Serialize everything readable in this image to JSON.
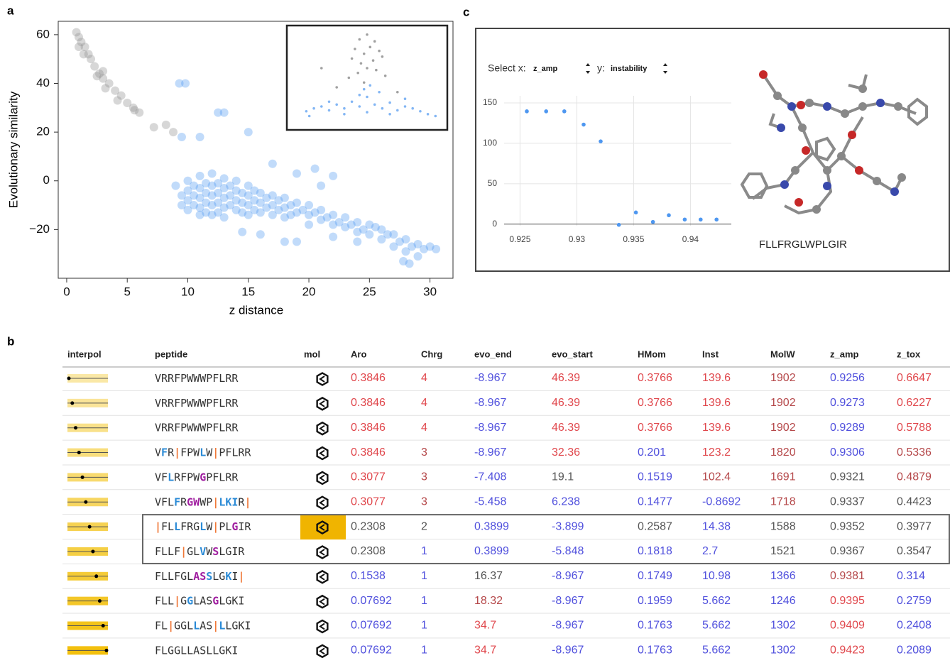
{
  "panel_labels": [
    "a",
    "b",
    "c"
  ],
  "chart_data": [
    {
      "type": "scatter",
      "xlabel": "z distance",
      "ylabel": "Evolutionary similarity",
      "xlim": [
        -0.7,
        31.9
      ],
      "ylim": [
        -40,
        65.5
      ],
      "xticks": [
        0,
        5,
        10,
        15,
        20,
        25,
        30
      ],
      "yticks": [
        60,
        40,
        20,
        0,
        {
          "value": -20,
          "label": "−20"
        }
      ],
      "frame": true,
      "series": [
        {
          "color": "#8c8c8c",
          "x": [
            0.8,
            1,
            1.2,
            1.5,
            1.8,
            2,
            2.3,
            2.7,
            3,
            3.5,
            4,
            4.5,
            5,
            5.5,
            6,
            1,
            1.4,
            2.5,
            3.2,
            4.2,
            5.6,
            7.2,
            8.2,
            8.8,
            3
          ],
          "y": [
            61,
            59,
            57,
            55,
            52,
            50,
            47,
            44,
            42,
            40,
            37,
            35,
            32,
            30,
            28,
            55,
            52,
            43,
            38,
            33,
            29,
            22,
            23,
            20,
            45
          ]
        },
        {
          "color": "#4e97f0",
          "x": [
            9.3,
            9.8,
            12.5,
            13,
            15,
            9.5,
            11,
            9,
            9.5,
            9.5,
            10,
            10,
            10,
            10,
            10.5,
            10.5,
            10.5,
            11,
            11,
            11,
            11,
            11,
            11.5,
            11.5,
            11.5,
            11.5,
            12,
            12,
            12,
            12,
            12,
            12.5,
            12.5,
            12.5,
            12.5,
            13,
            13,
            13,
            13,
            13,
            13.5,
            13.5,
            13.5,
            14,
            14,
            14,
            14,
            14.5,
            14.5,
            14.5,
            15,
            15,
            15,
            15,
            15.5,
            15.5,
            15.5,
            16,
            16,
            16,
            16.5,
            16.5,
            17,
            17,
            17,
            17.5,
            17.5,
            18,
            18,
            18,
            18.5,
            18.5,
            19,
            19,
            19.5,
            20,
            20,
            20,
            20.5,
            21,
            21,
            21.5,
            22,
            22,
            22.5,
            23,
            23,
            23.5,
            24,
            24,
            24.5,
            25,
            25,
            25.5,
            26,
            26,
            26.5,
            27,
            27,
            27.5,
            28,
            28,
            28.5,
            29,
            29,
            29.5,
            30,
            30.5,
            27.8,
            28.3,
            19,
            18,
            22,
            24,
            16,
            14.5,
            20.5,
            17,
            19,
            22,
            21
          ],
          "y": [
            40,
            40,
            28,
            28,
            20,
            18,
            18,
            -2,
            -6,
            -10,
            0,
            -4,
            -8,
            -12,
            -2,
            -6,
            -10,
            2,
            -3,
            -7,
            -11,
            -14,
            -1,
            -5,
            -9,
            -13,
            3,
            -2,
            -6,
            -10,
            -14,
            -1,
            -5,
            -9,
            -13,
            1,
            -3,
            -7,
            -11,
            -15,
            -2,
            -6,
            -10,
            0,
            -4,
            -8,
            -12,
            -5,
            -9,
            -13,
            -2,
            -6,
            -10,
            -14,
            -4,
            -8,
            -12,
            -5,
            -9,
            -13,
            -7,
            -11,
            -6,
            -10,
            -14,
            -8,
            -12,
            -7,
            -11,
            -15,
            -10,
            -14,
            -9,
            -13,
            -12,
            -10,
            -14,
            -18,
            -13,
            -12,
            -16,
            -15,
            -14,
            -18,
            -17,
            -15,
            -19,
            -18,
            -17,
            -21,
            -20,
            -18,
            -22,
            -19,
            -20,
            -24,
            -22,
            -22,
            -27,
            -25,
            -24,
            -29,
            -27,
            -26,
            -31,
            -28,
            -27,
            -28,
            -33,
            -34,
            -25,
            -25,
            -23,
            -25,
            -22,
            -21,
            5,
            7,
            3,
            2,
            -2
          ]
        }
      ],
      "inset": {
        "type": "scatter",
        "xlim": [
          0,
          100
        ],
        "ylim": [
          0,
          100
        ],
        "series": [
          {
            "color": "#777777",
            "x": [
              45,
              50,
              55,
              42,
              48,
              52,
              58,
              40,
              46,
              54,
              60,
              44,
              50,
              56,
              38,
              62,
              48,
              30,
              20,
              70
            ],
            "y": [
              90,
              95,
              88,
              80,
              75,
              82,
              78,
              70,
              65,
              68,
              72,
              55,
              60,
              58,
              50,
              52,
              45,
              40,
              60,
              35
            ]
          },
          {
            "color": "#4e97f0",
            "x": [
              10,
              15,
              20,
              25,
              30,
              35,
              40,
              45,
              50,
              55,
              60,
              65,
              70,
              75,
              80,
              85,
              90,
              35,
              50,
              65,
              48,
              52,
              45,
              58,
              75,
              25,
              95,
              12
            ],
            "y": [
              15,
              18,
              20,
              16,
              22,
              18,
              25,
              20,
              30,
              22,
              18,
              24,
              16,
              20,
              18,
              15,
              12,
              12,
              14,
              12,
              38,
              42,
              32,
              35,
              28,
              25,
              10,
              10
            ]
          }
        ]
      }
    },
    {
      "type": "scatter",
      "x_select_label": "Select x:",
      "x_field": "z_amp",
      "y_select_label": "y:",
      "y_field": "instability",
      "caption": "FLLFRGLWPLGIR",
      "grid": true,
      "xlim": [
        0.9236,
        0.9436
      ],
      "ylim": [
        -2,
        158.8
      ],
      "xticks": [
        0.925,
        0.93,
        0.935,
        0.94
      ],
      "yticks": [
        0,
        50,
        100,
        150
      ],
      "series": [
        {
          "color": "#4e97f0",
          "x": [
            0.9256,
            0.9273,
            0.9289,
            0.9306,
            0.9321,
            0.9337,
            0.9352,
            0.9367,
            0.9381,
            0.9395,
            0.9409,
            0.9423
          ],
          "y": [
            139.6,
            139.6,
            139.6,
            123.2,
            102.4,
            -0.8692,
            14.38,
            2.7,
            10.98,
            5.662,
            5.662,
            5.662
          ]
        }
      ]
    }
  ],
  "table": {
    "columns": [
      "interpol",
      "peptide",
      "mol",
      "Aro",
      "Chrg",
      "evo_end",
      "evo_start",
      "HMom",
      "Inst",
      "MolW",
      "z_amp",
      "z_tox"
    ],
    "slider_color": "#f2bd00",
    "selected_rows": [
      6,
      7
    ],
    "selected_mol": 6,
    "selected_color": "#f0b400",
    "rows": [
      {
        "interpol": 0,
        "peptide": [
          {
            "text": "VRRFPWWWPFLRR"
          }
        ],
        "values": [
          0.3846,
          4,
          -8.967,
          46.39,
          0.3766,
          139.6,
          1902,
          0.9256,
          0.6647
        ],
        "colors": [
          "#e0474c",
          "#e0474c",
          "#5050dd",
          "#e0474c",
          "#e0474c",
          "#e0474c",
          "#b5484a",
          "#5050dd",
          "#e0474c"
        ]
      },
      {
        "interpol": 0.09,
        "peptide": [
          {
            "text": "VRRFPWWWPFLRR"
          }
        ],
        "values": [
          0.3846,
          4,
          -8.967,
          46.39,
          0.3766,
          139.6,
          1902,
          0.9273,
          0.6227
        ],
        "colors": [
          "#e0474c",
          "#e0474c",
          "#5050dd",
          "#e0474c",
          "#e0474c",
          "#e0474c",
          "#b5484a",
          "#5050dd",
          "#e0474c"
        ]
      },
      {
        "interpol": 0.18,
        "peptide": [
          {
            "text": "VRRFPWWWPFLRR"
          }
        ],
        "values": [
          0.3846,
          4,
          -8.967,
          46.39,
          0.3766,
          139.6,
          1902,
          0.9289,
          0.5788
        ],
        "colors": [
          "#e0474c",
          "#e0474c",
          "#5050dd",
          "#e0474c",
          "#e0474c",
          "#e0474c",
          "#b5484a",
          "#5050dd",
          "#e0474c"
        ]
      },
      {
        "interpol": 0.27,
        "peptide": [
          {
            "text": "V"
          },
          {
            "text": "F",
            "color": "#2a8ad6"
          },
          {
            "text": "R"
          },
          {
            "text": "|",
            "color": "#f07838"
          },
          {
            "text": "FPW"
          },
          {
            "text": "L",
            "color": "#2a8ad6"
          },
          {
            "text": "W"
          },
          {
            "text": "|",
            "color": "#f07838"
          },
          {
            "text": "PFLRR"
          }
        ],
        "values": [
          0.3846,
          3,
          -8.967,
          32.36,
          0.201,
          123.2,
          1820,
          0.9306,
          0.5336
        ],
        "colors": [
          "#e0474c",
          "#b5484a",
          "#5050dd",
          "#e0474c",
          "#5050dd",
          "#e0474c",
          "#b5484a",
          "#5050dd",
          "#b5484a"
        ]
      },
      {
        "interpol": 0.36,
        "peptide": [
          {
            "text": "VF"
          },
          {
            "text": "L",
            "color": "#2a8ad6"
          },
          {
            "text": "RFPW"
          },
          {
            "text": "G",
            "color": "#a01ea0"
          },
          {
            "text": "PFLRR"
          }
        ],
        "values": [
          0.3077,
          3,
          -7.408,
          19.1,
          0.1519,
          102.4,
          1691,
          0.9321,
          0.4879
        ],
        "colors": [
          "#e0474c",
          "#b5484a",
          "#5050dd",
          "#555555",
          "#5050dd",
          "#b5484a",
          "#b5484a",
          "#555555",
          "#b5484a"
        ]
      },
      {
        "interpol": 0.45,
        "peptide": [
          {
            "text": "VFL"
          },
          {
            "text": "F",
            "color": "#2a8ad6"
          },
          {
            "text": "R"
          },
          {
            "text": "GW",
            "color": "#a01ea0"
          },
          {
            "text": "WP"
          },
          {
            "text": "|",
            "color": "#f07838"
          },
          {
            "text": "LKI",
            "color": "#2a8ad6"
          },
          {
            "text": "R"
          },
          {
            "text": "|",
            "color": "#f07838"
          }
        ],
        "values": [
          0.3077,
          3,
          -5.458,
          6.238,
          0.1477,
          -0.8692,
          1718,
          0.9337,
          0.4423
        ],
        "colors": [
          "#e0474c",
          "#b5484a",
          "#5050dd",
          "#5050dd",
          "#5050dd",
          "#5050dd",
          "#b5484a",
          "#555555",
          "#555555"
        ]
      },
      {
        "interpol": 0.55,
        "peptide": [
          {
            "text": "|",
            "color": "#f07838"
          },
          {
            "text": "FL"
          },
          {
            "text": "L",
            "color": "#2a8ad6"
          },
          {
            "text": "FRG"
          },
          {
            "text": "L",
            "color": "#2a8ad6"
          },
          {
            "text": "W"
          },
          {
            "text": "|",
            "color": "#f07838"
          },
          {
            "text": "PL"
          },
          {
            "text": "G",
            "color": "#a01ea0"
          },
          {
            "text": "IR"
          }
        ],
        "values": [
          0.2308,
          2,
          0.3899,
          -3.899,
          0.2587,
          14.38,
          1588,
          0.9352,
          0.3977
        ],
        "colors": [
          "#555555",
          "#555555",
          "#5050dd",
          "#5050dd",
          "#555555",
          "#5050dd",
          "#555555",
          "#555555",
          "#555555"
        ]
      },
      {
        "interpol": 0.64,
        "peptide": [
          {
            "text": "FLLF"
          },
          {
            "text": "|",
            "color": "#f07838"
          },
          {
            "text": "GL"
          },
          {
            "text": "V",
            "color": "#2a8ad6"
          },
          {
            "text": "W"
          },
          {
            "text": "S",
            "color": "#a01ea0"
          },
          {
            "text": "LGIR"
          }
        ],
        "values": [
          0.2308,
          1,
          0.3899,
          -5.848,
          0.1818,
          2.7,
          1521,
          0.9367,
          0.3547
        ],
        "colors": [
          "#555555",
          "#5050dd",
          "#5050dd",
          "#5050dd",
          "#5050dd",
          "#5050dd",
          "#555555",
          "#555555",
          "#555555"
        ]
      },
      {
        "interpol": 0.73,
        "peptide": [
          {
            "text": "FLLFGL"
          },
          {
            "text": "AS",
            "color": "#a01ea0"
          },
          {
            "text": "S",
            "color": "#2a8ad6"
          },
          {
            "text": "LG"
          },
          {
            "text": "K",
            "color": "#2a8ad6"
          },
          {
            "text": "I"
          },
          {
            "text": "|",
            "color": "#f07838"
          }
        ],
        "values": [
          0.1538,
          1,
          16.37,
          -8.967,
          0.1749,
          10.98,
          1366,
          0.9381,
          0.314
        ],
        "colors": [
          "#5050dd",
          "#5050dd",
          "#555555",
          "#5050dd",
          "#5050dd",
          "#5050dd",
          "#5050dd",
          "#b5484a",
          "#5050dd"
        ]
      },
      {
        "interpol": 0.82,
        "peptide": [
          {
            "text": "FLL"
          },
          {
            "text": "|",
            "color": "#f07838"
          },
          {
            "text": "G"
          },
          {
            "text": "G",
            "color": "#2a8ad6"
          },
          {
            "text": "LAS"
          },
          {
            "text": "G",
            "color": "#a01ea0"
          },
          {
            "text": "LGKI"
          }
        ],
        "values": [
          0.07692,
          1,
          18.32,
          -8.967,
          0.1959,
          5.662,
          1246,
          0.9395,
          0.2759
        ],
        "colors": [
          "#5050dd",
          "#5050dd",
          "#b5484a",
          "#5050dd",
          "#5050dd",
          "#5050dd",
          "#5050dd",
          "#e0474c",
          "#5050dd"
        ]
      },
      {
        "interpol": 0.91,
        "peptide": [
          {
            "text": "FL"
          },
          {
            "text": "|",
            "color": "#f07838"
          },
          {
            "text": "GGL"
          },
          {
            "text": "L",
            "color": "#2a8ad6"
          },
          {
            "text": "AS"
          },
          {
            "text": "|",
            "color": "#f07838"
          },
          {
            "text": "L",
            "color": "#2a8ad6"
          },
          {
            "text": "LGKI"
          }
        ],
        "values": [
          0.07692,
          1,
          34.7,
          -8.967,
          0.1763,
          5.662,
          1302,
          0.9409,
          0.2408
        ],
        "colors": [
          "#5050dd",
          "#5050dd",
          "#e0474c",
          "#5050dd",
          "#5050dd",
          "#5050dd",
          "#5050dd",
          "#e0474c",
          "#5050dd"
        ]
      },
      {
        "interpol": 1,
        "peptide": [
          {
            "text": "FLGGLLASLLGKI"
          }
        ],
        "values": [
          0.07692,
          1,
          34.7,
          -8.967,
          0.1763,
          5.662,
          1302,
          0.9423,
          0.2089
        ],
        "colors": [
          "#5050dd",
          "#5050dd",
          "#e0474c",
          "#5050dd",
          "#5050dd",
          "#5050dd",
          "#5050dd",
          "#e0474c",
          "#5050dd"
        ]
      }
    ]
  }
}
